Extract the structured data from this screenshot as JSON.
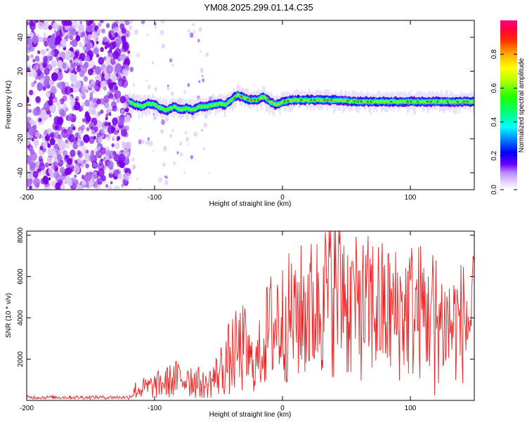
{
  "title": "YM08.2025.299.01.14.C35",
  "colors": {
    "line": "#ee2222",
    "trace": "#ee1111",
    "speckle": "#7a00e6",
    "axis": "#000000"
  },
  "chart_data": [
    {
      "type": "heatmap",
      "panel": "spectrogram",
      "xlabel": "Height of straight line (km)",
      "ylabel": "Frequency (Hz)",
      "xlim": [
        -200,
        150
      ],
      "ylim": [
        -50,
        50
      ],
      "xticks": [
        -200,
        -100,
        0,
        100
      ],
      "xtick_labels": [
        "-200",
        "-100",
        "0",
        "100"
      ],
      "yticks": [
        -40,
        -20,
        0,
        20,
        40
      ],
      "ytick_labels": [
        "-40",
        "-20",
        "0",
        "20",
        "40"
      ],
      "noise_region_x": [
        -200,
        -120
      ],
      "ridge": {
        "x": [
          -120,
          -115,
          -110,
          -105,
          -100,
          -95,
          -90,
          -85,
          -80,
          -75,
          -70,
          -65,
          -60,
          -55,
          -50,
          -45,
          -40,
          -35,
          -30,
          -25,
          -20,
          -15,
          -10,
          -5,
          0,
          10,
          20,
          30,
          40,
          60,
          80,
          100,
          120,
          150
        ],
        "frequency": [
          2,
          0,
          -1,
          1,
          0,
          -2,
          -3,
          -1,
          -3,
          -2,
          -3,
          -1,
          -1,
          0,
          1,
          0,
          3,
          6,
          4,
          3,
          3,
          5,
          2,
          0,
          2,
          3,
          3,
          3,
          3,
          2,
          2,
          2,
          2,
          2
        ]
      },
      "colorbar": {
        "label": "Normalized spectral amplitude",
        "range": [
          0.0,
          1.0
        ],
        "ticks": [
          0.0,
          0.2,
          0.4,
          0.6,
          0.8
        ],
        "tick_labels": [
          "0.0",
          "0.2",
          "0.4",
          "0.6",
          "0.8"
        ]
      }
    },
    {
      "type": "line",
      "panel": "snr",
      "xlabel": "Height of straight line (km)",
      "ylabel": "SNR (10 * v/v)",
      "xlim": [
        -200,
        150
      ],
      "ylim": [
        0,
        8200
      ],
      "xticks": [
        -200,
        -100,
        0,
        100
      ],
      "xtick_labels": [
        "-200",
        "-100",
        "0",
        "100"
      ],
      "yticks": [
        2000,
        4000,
        6000,
        8000
      ],
      "ytick_labels": [
        "2000",
        "4000",
        "6000",
        "8000"
      ],
      "series": [
        {
          "name": "SNR",
          "envelope_x": [
            -200,
            -120,
            -115,
            -100,
            -90,
            -80,
            -70,
            -60,
            -50,
            -40,
            -30,
            -25,
            -20,
            -15,
            -10,
            0,
            10,
            20,
            30,
            40,
            45,
            50,
            60,
            70,
            80,
            90,
            100,
            110,
            115,
            120,
            130,
            140,
            150
          ],
          "envelope_y": [
            150,
            150,
            500,
            700,
            900,
            1100,
            1000,
            700,
            1300,
            2200,
            2500,
            1800,
            1800,
            2800,
            3500,
            3800,
            4200,
            4300,
            4700,
            5500,
            5000,
            4700,
            4300,
            4600,
            4300,
            4200,
            4400,
            4300,
            4600,
            4000,
            3600,
            3800,
            3900
          ],
          "spikes": [
            {
              "x": 45.0,
              "y": 8200
            },
            {
              "x": 48.0,
              "y": 7500
            },
            {
              "x": 38.0,
              "y": 7000
            },
            {
              "x": 55.0,
              "y": 6700
            },
            {
              "x": 32.0,
              "y": 6500
            },
            {
              "x": 28.0,
              "y": 6200
            },
            {
              "x": 60.5,
              "y": 6300
            },
            {
              "x": 66.0,
              "y": 6200
            },
            {
              "x": 10.0,
              "y": 6300
            },
            {
              "x": 20.0,
              "y": 6100
            },
            {
              "x": 114.0,
              "y": 6000
            },
            {
              "x": 100.0,
              "y": 5800
            },
            {
              "x": 118.0,
              "y": 5800
            },
            {
              "x": -4.0,
              "y": 5600
            },
            {
              "x": -41.0,
              "y": 2600
            },
            {
              "x": -74.0,
              "y": 1450
            },
            {
              "x": 119.0,
              "y": 250
            }
          ]
        }
      ]
    }
  ]
}
